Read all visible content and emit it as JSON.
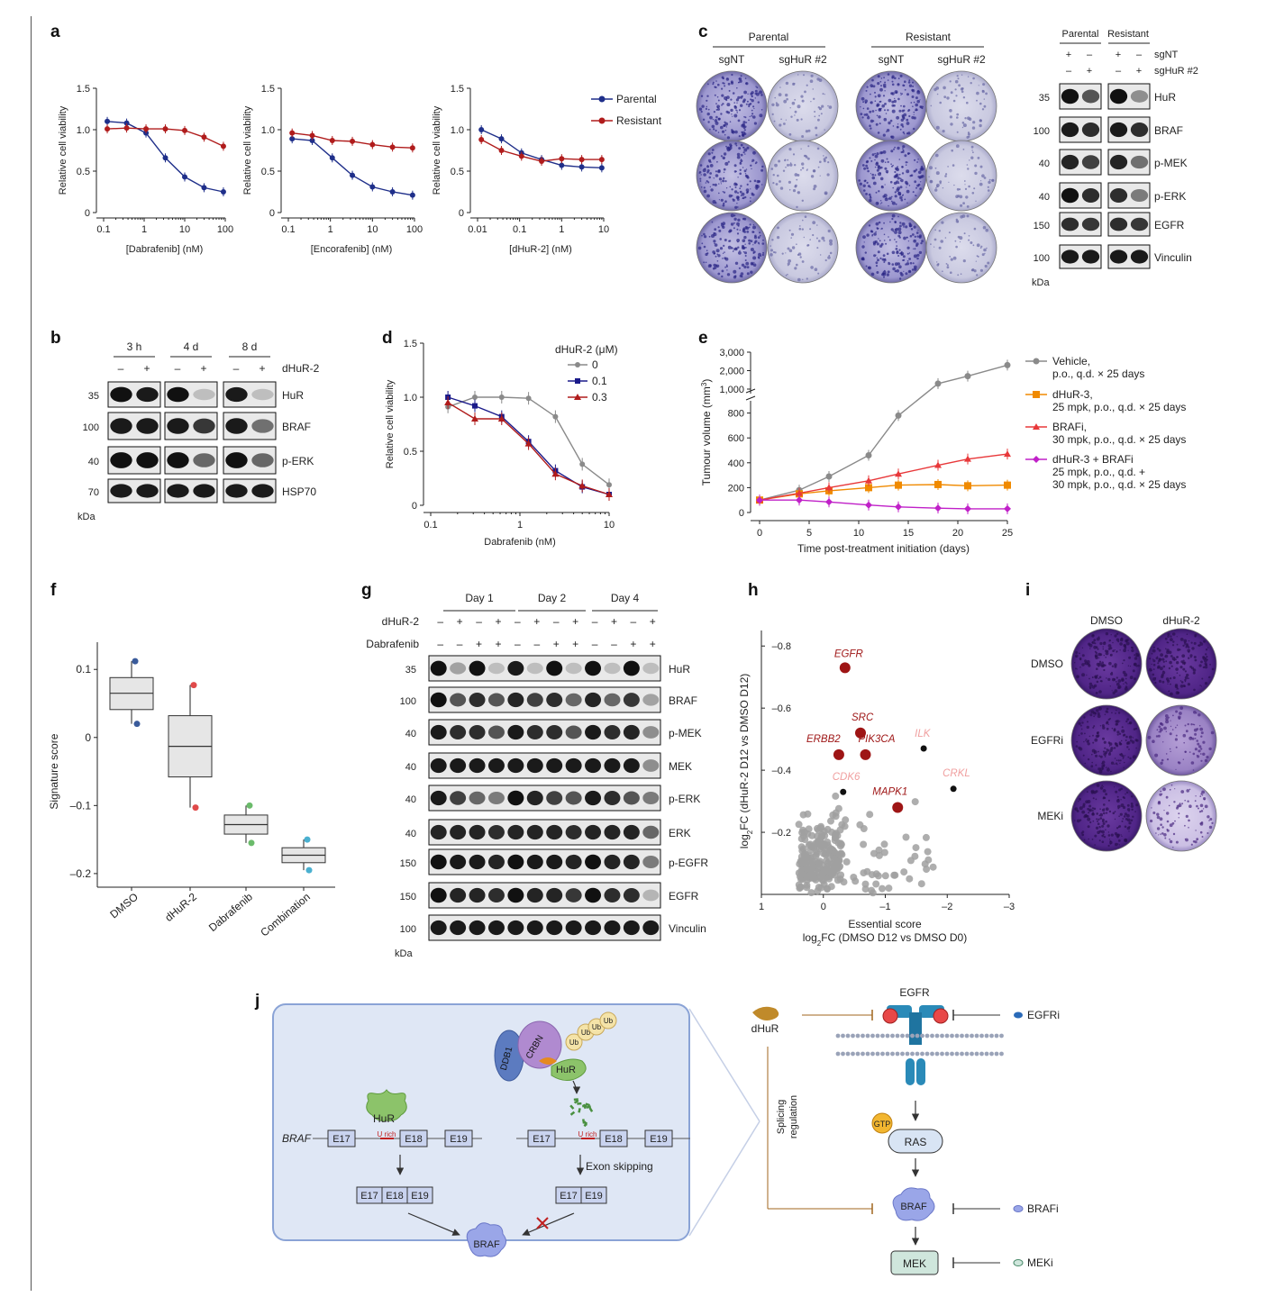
{
  "panel_labels": [
    "a",
    "b",
    "c",
    "d",
    "e",
    "f",
    "g",
    "h",
    "i",
    "j"
  ],
  "colors": {
    "parental": "#1f2f8a",
    "resistant": "#b01c1c",
    "gray": "#8a8a8a",
    "dmso_band": "#2b2b2b",
    "crystal": "#4a3aa8",
    "orange": "#f08a00",
    "red": "#e8383a",
    "magenta": "#c020c8",
    "dark_red": "#9e1515",
    "pink": "#f0a0a0",
    "diagram_fill": "#dfe7f5",
    "diagram_border": "#8aa3d6",
    "brown": "#a0661e"
  },
  "panel_a": {
    "ylabel": "Relative cell viability",
    "legend": [
      "Parental",
      "Resistant"
    ],
    "charts": [
      {
        "xlabel": "[Dabrafenib] (nM)",
        "xticks": [
          "0.1",
          "1",
          "10",
          "100"
        ]
      },
      {
        "xlabel": "[Encorafenib] (nM)",
        "xticks": [
          "0.1",
          "1",
          "10",
          "100"
        ]
      },
      {
        "xlabel": "[dHuR-2] (nM)",
        "xticks": [
          "0.01",
          "0.1",
          "1",
          "10"
        ]
      }
    ],
    "yticks": [
      "0",
      "0.5",
      "1.0",
      "1.5"
    ]
  },
  "chart_data": [
    {
      "type": "scatter",
      "panel": "a1",
      "xlabel": "[Dabrafenib] (nM)",
      "ylabel": "Relative cell viability",
      "xscale": "log",
      "xlim": [
        0.1,
        100
      ],
      "ylim": [
        0,
        1.5
      ],
      "series": [
        {
          "name": "Parental",
          "x": [
            0.123,
            0.37,
            1.11,
            3.33,
            10,
            30,
            90
          ],
          "y": [
            1.1,
            1.08,
            0.96,
            0.66,
            0.43,
            0.3,
            0.25
          ]
        },
        {
          "name": "Resistant",
          "x": [
            0.123,
            0.37,
            1.11,
            3.33,
            10,
            30,
            90
          ],
          "y": [
            1.01,
            1.02,
            1.01,
            1.01,
            0.99,
            0.91,
            0.8
          ]
        }
      ]
    },
    {
      "type": "scatter",
      "panel": "a2",
      "xlabel": "[Encorafenib] (nM)",
      "ylabel": "Relative cell viability",
      "xscale": "log",
      "xlim": [
        0.1,
        100
      ],
      "ylim": [
        0,
        1.5
      ],
      "series": [
        {
          "name": "Parental",
          "x": [
            0.123,
            0.37,
            1.11,
            3.33,
            10,
            30,
            90
          ],
          "y": [
            0.89,
            0.87,
            0.66,
            0.45,
            0.31,
            0.25,
            0.21
          ]
        },
        {
          "name": "Resistant",
          "x": [
            0.123,
            0.37,
            1.11,
            3.33,
            10,
            30,
            90
          ],
          "y": [
            0.96,
            0.93,
            0.87,
            0.86,
            0.82,
            0.79,
            0.78
          ]
        }
      ]
    },
    {
      "type": "scatter",
      "panel": "a3",
      "xlabel": "[dHuR-2] (nM)",
      "ylabel": "Relative cell viability",
      "xscale": "log",
      "xlim": [
        0.01,
        10
      ],
      "ylim": [
        0,
        1.5
      ],
      "series": [
        {
          "name": "Parental",
          "x": [
            0.0123,
            0.037,
            0.111,
            0.333,
            1,
            3,
            9
          ],
          "y": [
            1.0,
            0.89,
            0.72,
            0.64,
            0.57,
            0.55,
            0.54
          ]
        },
        {
          "name": "Resistant",
          "x": [
            0.0123,
            0.037,
            0.111,
            0.333,
            1,
            3,
            9
          ],
          "y": [
            0.88,
            0.75,
            0.68,
            0.62,
            0.65,
            0.64,
            0.64
          ]
        }
      ]
    },
    {
      "type": "scatter",
      "panel": "d",
      "xlabel": "Dabrafenib (nM)",
      "ylabel": "Relative cell viability",
      "xscale": "log",
      "xlim": [
        0.1,
        10
      ],
      "ylim": [
        0,
        1.5
      ],
      "legend_title": "dHuR-2 (μM)",
      "series": [
        {
          "name": "0",
          "x": [
            0.156,
            0.3125,
            0.625,
            1.25,
            2.5,
            5,
            10
          ],
          "y": [
            0.91,
            1.0,
            1.0,
            0.99,
            0.82,
            0.38,
            0.19
          ]
        },
        {
          "name": "0.1",
          "x": [
            0.156,
            0.3125,
            0.625,
            1.25,
            2.5,
            5,
            10
          ],
          "y": [
            1.0,
            0.92,
            0.82,
            0.59,
            0.32,
            0.17,
            0.1
          ]
        },
        {
          "name": "0.3",
          "x": [
            0.156,
            0.3125,
            0.625,
            1.25,
            2.5,
            5,
            10
          ],
          "y": [
            0.95,
            0.8,
            0.8,
            0.57,
            0.29,
            0.18,
            0.1
          ]
        }
      ]
    },
    {
      "type": "line",
      "panel": "e",
      "xlabel": "Time post-treatment initiation (days)",
      "ylabel": "Tumour volume (mm3)",
      "xlim": [
        0,
        25
      ],
      "series": [
        {
          "name": "Vehicle, p.o., q.d. × 25 days",
          "x": [
            0,
            4,
            7,
            11,
            14,
            18,
            21,
            25
          ],
          "y": [
            100,
            180,
            290,
            460,
            780,
            1300,
            1700,
            2300
          ]
        },
        {
          "name": "dHuR-3, 25 mpk, p.o., q.d. × 25 days",
          "x": [
            0,
            4,
            7,
            11,
            14,
            18,
            21,
            25
          ],
          "y": [
            100,
            150,
            175,
            200,
            220,
            225,
            215,
            220
          ]
        },
        {
          "name": "BRAFi, 30 mpk, p.o., q.d. × 25 days",
          "x": [
            0,
            4,
            7,
            11,
            14,
            18,
            21,
            25
          ],
          "y": [
            100,
            155,
            200,
            255,
            310,
            380,
            430,
            470
          ]
        },
        {
          "name": "dHuR-3 + BRAFi 25 mpk, p.o., q.d. + 30 mpk, p.o., q.d. × 25 days",
          "x": [
            0,
            4,
            7,
            11,
            14,
            18,
            21,
            25
          ],
          "y": [
            100,
            100,
            85,
            60,
            45,
            35,
            30,
            30
          ]
        }
      ]
    },
    {
      "type": "box",
      "panel": "f",
      "ylabel": "Signature score",
      "ylim": [
        -0.22,
        0.14
      ],
      "categories": [
        "DMSO",
        "dHuR-2",
        "Dabrafenib",
        "Combination"
      ],
      "boxes": [
        {
          "q1": 0.041,
          "median": 0.065,
          "q3": 0.088,
          "lo": 0.02,
          "hi": 0.112
        },
        {
          "q1": -0.058,
          "median": -0.013,
          "q3": 0.032,
          "lo": -0.103,
          "hi": 0.077
        },
        {
          "q1": -0.142,
          "median": -0.128,
          "q3": -0.114,
          "lo": -0.155,
          "hi": -0.1
        },
        {
          "q1": -0.184,
          "median": -0.173,
          "q3": -0.162,
          "lo": -0.195,
          "hi": -0.15
        }
      ],
      "points": [
        [
          0.112,
          0.02
        ],
        [
          0.077,
          -0.103
        ],
        [
          -0.1,
          -0.155
        ],
        [
          -0.15,
          -0.195
        ]
      ]
    },
    {
      "type": "scatter",
      "panel": "h",
      "xlabel": "Essential score",
      "xlabel2": "log2FC (DMSO D12 vs DMSO D0)",
      "ylabel": "log2FC (dHuR-2 D12 vs DMSO D12)",
      "xlim": [
        1,
        -3
      ],
      "ylim": [
        0,
        -0.85
      ],
      "labeled_points": [
        {
          "name": "EGFR",
          "x": -0.35,
          "y": -0.73
        },
        {
          "name": "SRC",
          "x": -0.6,
          "y": -0.52
        },
        {
          "name": "ERBB2",
          "x": -0.25,
          "y": -0.45
        },
        {
          "name": "PIK3CA",
          "x": -0.68,
          "y": -0.45
        },
        {
          "name": "MAPK1",
          "x": -1.2,
          "y": -0.28
        },
        {
          "name": "ILK",
          "x": -1.62,
          "y": -0.47
        },
        {
          "name": "CDK6",
          "x": -0.32,
          "y": -0.33
        },
        {
          "name": "CRKL",
          "x": -2.1,
          "y": -0.34
        }
      ]
    }
  ],
  "panel_b": {
    "columns": [
      "3 h",
      "4 d",
      "8 d"
    ],
    "treatment_label": "dHuR-2",
    "signs": [
      "–",
      "+",
      "–",
      "+",
      "–",
      "+"
    ],
    "rows": [
      {
        "mw": "35",
        "label": "HuR"
      },
      {
        "mw": "100",
        "label": "BRAF"
      },
      {
        "mw": "40",
        "label": "p-ERK"
      },
      {
        "mw": "70",
        "label": "HSP70"
      }
    ],
    "unit": "kDa"
  },
  "panel_c": {
    "groups": [
      "Parental",
      "Resistant"
    ],
    "cols": [
      "sgNT",
      "sgHuR #2",
      "sgNT",
      "sgHuR #2"
    ],
    "wb_groups": [
      "Parental",
      "Resistant"
    ],
    "wb_labels": [
      "sgNT",
      "sgHuR #2"
    ],
    "wb_signs": [
      [
        "+",
        "–",
        "+",
        "–"
      ],
      [
        "–",
        "+",
        "–",
        "+"
      ]
    ],
    "rows": [
      {
        "mw": "35",
        "label": "HuR"
      },
      {
        "mw": "100",
        "label": "BRAF"
      },
      {
        "mw": "40",
        "label": "p-MEK"
      },
      {
        "mw": "40",
        "label": "p-ERK"
      },
      {
        "mw": "150",
        "label": "EGFR"
      },
      {
        "mw": "100",
        "label": "Vinculin"
      }
    ],
    "unit": "kDa"
  },
  "panel_d": {
    "xlabel": "Dabrafenib (nM)",
    "ylabel": "Relative cell viability",
    "legend_title": "dHuR-2 (μM)",
    "legend": [
      "0",
      "0.1",
      "0.3"
    ],
    "xticks": [
      "0.1",
      "1",
      "10"
    ],
    "yticks": [
      "0",
      "0.5",
      "1.0",
      "1.5"
    ]
  },
  "panel_e": {
    "xlabel": "Time post-treatment initiation (days)",
    "ylabel": "Tumour volume (mm",
    "ylabel_sup": "3",
    "ylabel_end": ")",
    "yticks_top": [
      "1,000",
      "2,000",
      "3,000"
    ],
    "yticks_bottom": [
      "0",
      "200",
      "400",
      "600",
      "800"
    ],
    "xticks": [
      "0",
      "5",
      "10",
      "15",
      "20",
      "25"
    ],
    "legend": [
      [
        "Vehicle,",
        "p.o., q.d. × 25 days"
      ],
      [
        "dHuR-3,",
        "25 mpk, p.o., q.d. × 25 days"
      ],
      [
        "BRAFi,",
        "30 mpk, p.o., q.d. × 25 days"
      ],
      [
        "dHuR-3 + BRAFi",
        "25 mpk, p.o., q.d. +",
        "30 mpk, p.o., q.d. × 25 days"
      ]
    ]
  },
  "panel_f": {
    "ylabel": "Signature score",
    "categories": [
      "DMSO",
      "dHuR-2",
      "Dabrafenib",
      "Combination"
    ],
    "yticks": [
      "0.1",
      "0",
      "–0.1",
      "–0.2"
    ]
  },
  "panel_g": {
    "days": [
      "Day 1",
      "Day 2",
      "Day 4"
    ],
    "row1_label": "dHuR-2",
    "row2_label": "Dabrafenib",
    "row1_signs": [
      "–",
      "+",
      "–",
      "+",
      "–",
      "+",
      "–",
      "+",
      "–",
      "+",
      "–",
      "+"
    ],
    "row2_signs": [
      "–",
      "–",
      "+",
      "+",
      "–",
      "–",
      "+",
      "+",
      "–",
      "–",
      "+",
      "+"
    ],
    "rows": [
      {
        "mw": "35",
        "label": "HuR"
      },
      {
        "mw": "100",
        "label": "BRAF"
      },
      {
        "mw": "40",
        "label": "p-MEK"
      },
      {
        "mw": "40",
        "label": "MEK"
      },
      {
        "mw": "40",
        "label": "p-ERK"
      },
      {
        "mw": "40",
        "label": "ERK"
      },
      {
        "mw": "150",
        "label": "p-EGFR"
      },
      {
        "mw": "150",
        "label": "EGFR"
      },
      {
        "mw": "100",
        "label": "Vinculin"
      }
    ],
    "unit": "kDa"
  },
  "panel_h": {
    "ylabel": "log",
    "ylabel_sub": "2",
    "ylabel_rest": "FC (dHuR-2 D12 vs DMSO D12)",
    "xlabel1": "Essential score",
    "xlabel2_a": "log",
    "xlabel2_sub": "2",
    "xlabel2_b": "FC (DMSO D12 vs DMSO D0)",
    "xticks": [
      "1",
      "0",
      "–1",
      "–2",
      "–3"
    ],
    "yticks": [
      "–0.8",
      "–0.6",
      "–0.4",
      "–0.2"
    ]
  },
  "panel_i": {
    "cols": [
      "DMSO",
      "dHuR-2"
    ],
    "rows": [
      "DMSO",
      "EGFRi",
      "MEKi"
    ]
  },
  "panel_j": {
    "left": {
      "gene": "BRAF",
      "exons_a": [
        "E17",
        "E18",
        "E19"
      ],
      "exons_b": [
        "E17",
        "E18",
        "E19"
      ],
      "u_rich": "U rich",
      "hur": "HuR",
      "ddb1": "DDB1",
      "crbn": "CRBN",
      "ub": [
        "Ub",
        "Ub",
        "Ub",
        "Ub"
      ],
      "product_a": [
        "E17",
        "E18",
        "E19"
      ],
      "product_b": [
        "E17",
        "E19"
      ],
      "exon_skipping": "Exon skipping",
      "braf": "BRAF"
    },
    "right": {
      "dhur": "dHuR",
      "egfr": "EGFR",
      "egfri": "EGFRi",
      "gtp": "GTP",
      "ras": "RAS",
      "braf": "BRAF",
      "brafi": "BRAFi",
      "mek": "MEK",
      "meki": "MEKi",
      "splicing": [
        "Splicing",
        "regulation"
      ]
    }
  }
}
